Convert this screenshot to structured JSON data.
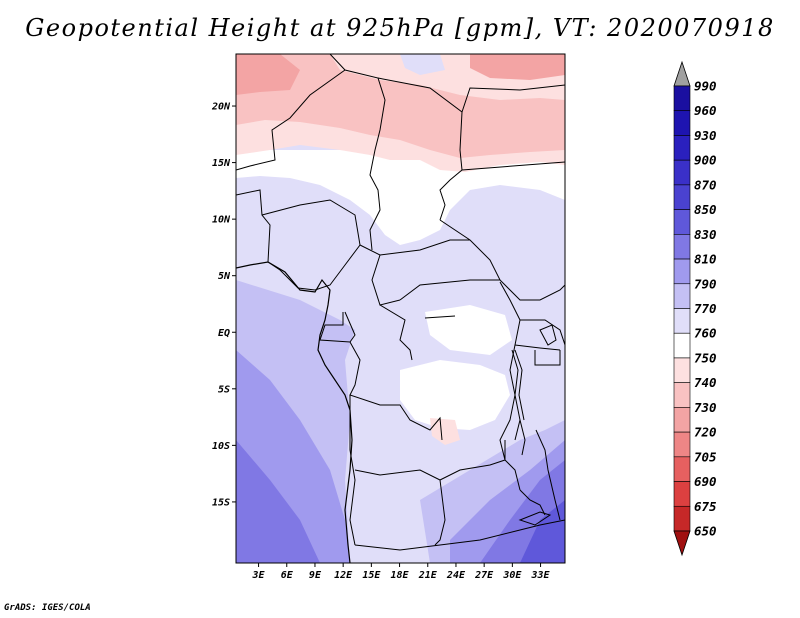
{
  "title": "Geopotential Height at 925hPa [gpm], VT: 2020070918",
  "footer": "GrADS: IGES/COLA",
  "map": {
    "lat_labels": [
      {
        "lat": 20,
        "label": "20N"
      },
      {
        "lat": 15,
        "label": "15N"
      },
      {
        "lat": 10,
        "label": "10N"
      },
      {
        "lat": 5,
        "label": "5N"
      },
      {
        "lat": 0,
        "label": "EQ"
      },
      {
        "lat": -5,
        "label": "5S"
      },
      {
        "lat": -10,
        "label": "10S"
      },
      {
        "lat": -15,
        "label": "15S"
      }
    ],
    "lon_labels": [
      {
        "lon": 3,
        "label": "3E"
      },
      {
        "lon": 6,
        "label": "6E"
      },
      {
        "lon": 9,
        "label": "9E"
      },
      {
        "lon": 12,
        "label": "12E"
      },
      {
        "lon": 15,
        "label": "15E"
      },
      {
        "lon": 18,
        "label": "18E"
      },
      {
        "lon": 21,
        "label": "21E"
      },
      {
        "lon": 24,
        "label": "24E"
      },
      {
        "lon": 27,
        "label": "27E"
      },
      {
        "lon": 30,
        "label": "30E"
      },
      {
        "lon": 33,
        "label": "33E"
      }
    ]
  },
  "colorbar": {
    "levels": [
      {
        "label": "990",
        "color": "#1a0fa0"
      },
      {
        "label": "960",
        "color": "#1e14b0"
      },
      {
        "label": "930",
        "color": "#2a20be"
      },
      {
        "label": "900",
        "color": "#3a30c8"
      },
      {
        "label": "870",
        "color": "#4a42d0"
      },
      {
        "label": "850",
        "color": "#5f58da"
      },
      {
        "label": "830",
        "color": "#8078e4"
      },
      {
        "label": "810",
        "color": "#a09aee"
      },
      {
        "label": "790",
        "color": "#c4c0f4"
      },
      {
        "label": "770",
        "color": "#e0def9"
      },
      {
        "label": "760",
        "color": "#ffffff"
      },
      {
        "label": "750",
        "color": "#fde0e0"
      },
      {
        "label": "740",
        "color": "#f9c2c2"
      },
      {
        "label": "730",
        "color": "#f3a4a4"
      },
      {
        "label": "720",
        "color": "#ee8686"
      },
      {
        "label": "705",
        "color": "#e66060"
      },
      {
        "label": "690",
        "color": "#dc4040"
      },
      {
        "label": "675",
        "color": "#c62828"
      },
      {
        "label": "650",
        "color": "#b01a1a"
      }
    ],
    "top_arrow_color": "#a0a0a0",
    "bottom_arrow_color": "#a01010"
  }
}
